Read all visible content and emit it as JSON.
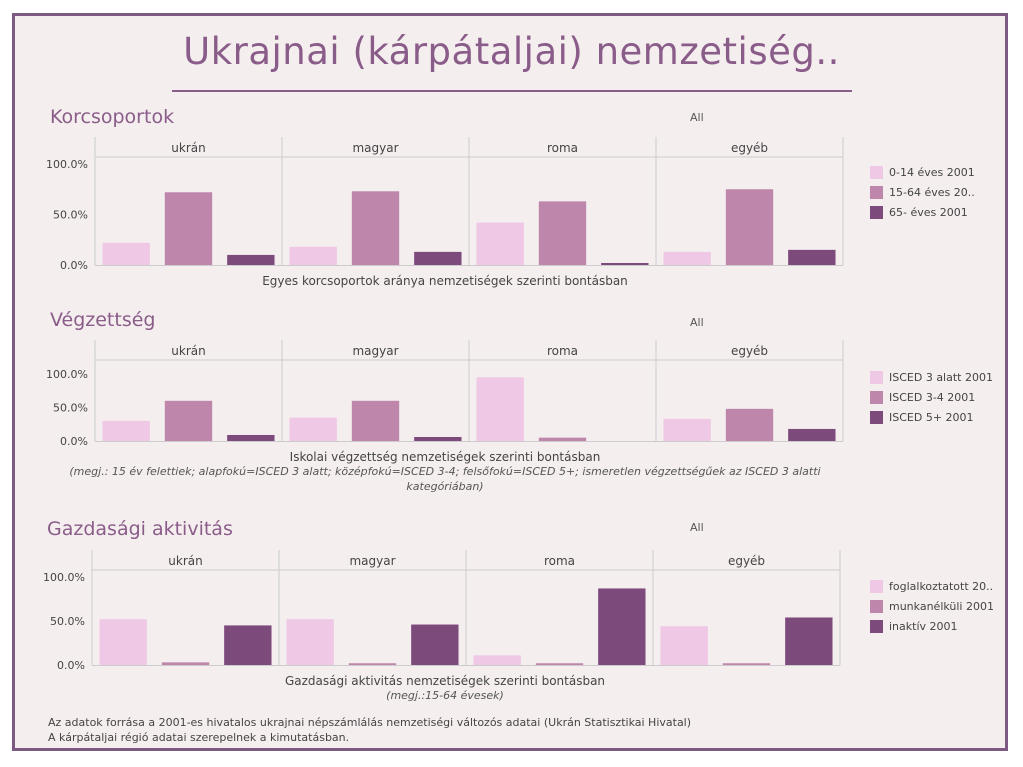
{
  "title": "Ukrajnai (kárpátaljai) nemzetiség..",
  "colors": [
    "#eec8e4",
    "#be86aa",
    "#7d4b7b"
  ],
  "footer": {
    "line1": "Az adatok forrása a 2001-es hivatalos ukrajnai népszámlálás nemzetiségi változós adatai (Ukrán Statisztikai Hivatal)",
    "line2": "A kárpátaljai régió adatai szerepelnek a kimutatásban."
  },
  "chart_data": [
    {
      "type": "bar",
      "title": "Korcsoportok",
      "filter": "All",
      "caption": "Egyes korcsoportok aránya nemzetiségek szerinti bontásban",
      "note": "",
      "panels": [
        "ukrán",
        "magyar",
        "roma",
        "egyéb"
      ],
      "yticks": [
        "100.0%",
        "50.0%",
        "0.0%"
      ],
      "ylim": [
        0,
        100
      ],
      "legend_position": "right",
      "series": [
        {
          "name": "0-14 éves 2001",
          "values": [
            22,
            18,
            42,
            13
          ]
        },
        {
          "name": "15-64 éves 20..",
          "values": [
            72,
            73,
            63,
            75
          ]
        },
        {
          "name": "65- éves 2001",
          "values": [
            10,
            13,
            2,
            15
          ]
        }
      ]
    },
    {
      "type": "bar",
      "title": "Végzettség",
      "filter": "All",
      "caption": "Iskolai végzettség nemzetiségek szerinti bontásban",
      "note": "(megj.: 15 év felettiek; alapfokú=ISCED 3 alatt; középfokú=ISCED 3-4; felsőfokú=ISCED 5+; ismeretlen végzettségűek az ISCED 3 alatti kategóriában)",
      "panels": [
        "ukrán",
        "magyar",
        "roma",
        "egyéb"
      ],
      "yticks": [
        "100.0%",
        "50.0%",
        "0.0%"
      ],
      "ylim": [
        0,
        100
      ],
      "legend_position": "right",
      "series": [
        {
          "name": "ISCED 3 alatt 2001",
          "values": [
            30,
            35,
            95,
            33
          ]
        },
        {
          "name": "ISCED 3-4 2001",
          "values": [
            60,
            60,
            5,
            48
          ]
        },
        {
          "name": "ISCED 5+ 2001",
          "values": [
            9,
            6,
            0,
            18
          ]
        }
      ]
    },
    {
      "type": "bar",
      "title": "Gazdasági aktivitás",
      "filter": "All",
      "caption": "Gazdasági aktivitás nemzetiségek szerinti bontásban",
      "note": "(megj.:15-64 évesek)",
      "panels": [
        "ukrán",
        "magyar",
        "roma",
        "egyéb"
      ],
      "yticks": [
        "100.0%",
        "50.0%",
        "0.0%"
      ],
      "ylim": [
        0,
        100
      ],
      "legend_position": "right",
      "series": [
        {
          "name": "foglalkoztatott 20..",
          "values": [
            52,
            52,
            11,
            44
          ]
        },
        {
          "name": "munkanélküli 2001",
          "values": [
            3,
            2,
            2,
            2
          ]
        },
        {
          "name": "inaktív 2001",
          "values": [
            45,
            46,
            87,
            54
          ]
        }
      ]
    }
  ]
}
